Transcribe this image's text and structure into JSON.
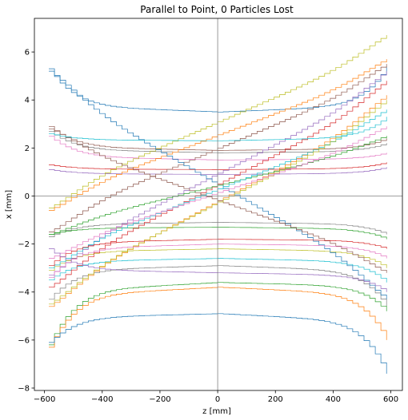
{
  "chart_data": {
    "type": "line",
    "title": "Parallel to Point, 0 Particles Lost",
    "xlabel": "z [mm]",
    "ylabel": "x [mm]",
    "xlim": [
      -635,
      640
    ],
    "ylim": [
      -8.1,
      7.4
    ],
    "xticks": [
      -600,
      -400,
      -200,
      0,
      200,
      400,
      600
    ],
    "yticks": [
      -8,
      -6,
      -4,
      -2,
      0,
      2,
      4,
      6
    ],
    "xtick_labels": [
      "−600",
      "−400",
      "−200",
      "0",
      "200",
      "400",
      "600"
    ],
    "ytick_labels": [
      "−8",
      "−6",
      "−4",
      "−2",
      "0",
      "2",
      "4",
      "6"
    ],
    "reference_lines": {
      "x": 0,
      "y": 0
    },
    "grid": false,
    "legend": "none",
    "z_range": [
      -585,
      585
    ],
    "series": [
      {
        "x0": 5.3,
        "x_mid": 3.5,
        "x_end": 5.4,
        "color": "#1f77b4"
      },
      {
        "x0": 2.9,
        "x_mid": 1.9,
        "x_end": 2.4,
        "color": "#8c564b"
      },
      {
        "x0": 2.7,
        "x_mid": 1.8,
        "x_end": 2.2,
        "color": "#7f7f7f"
      },
      {
        "x0": 2.5,
        "x_mid": 1.5,
        "x_end": 1.8,
        "color": "#e377c2"
      },
      {
        "x0": 1.3,
        "x_mid": 1.1,
        "x_end": 1.4,
        "color": "#d62728"
      },
      {
        "x0": 1.1,
        "x_mid": 0.9,
        "x_end": 1.2,
        "color": "#9467bd"
      },
      {
        "x0": -0.5,
        "x_mid": 4.4,
        "x_end": 6.7,
        "color": "#bcbd22"
      },
      {
        "x0": -0.6,
        "x_mid": 3.8,
        "x_end": 5.7,
        "color": "#ff7f0e"
      },
      {
        "x0": -1.7,
        "x_mid": -1.1,
        "x_end": -1.6,
        "color": "#7f7f7f"
      },
      {
        "x0": -1.6,
        "x_mid": -1.3,
        "x_end": -1.8,
        "color": "#2ca02c"
      },
      {
        "x0": -1.5,
        "x_mid": 3.1,
        "x_end": 5.5,
        "color": "#8c564b"
      },
      {
        "x0": -3.1,
        "x_mid": -2.2,
        "x_end": -3.0,
        "color": "#bcbd22"
      },
      {
        "x0": -3.3,
        "x_mid": 2.9,
        "x_end": 5.2,
        "color": "#9467bd"
      },
      {
        "x0": -3.5,
        "x_mid": -2.6,
        "x_end": -3.6,
        "color": "#17becf"
      },
      {
        "x0": -3.8,
        "x_mid": 2.6,
        "x_end": 4.8,
        "color": "#d62728"
      },
      {
        "x0": -4.3,
        "x_mid": -2.9,
        "x_end": -4.6,
        "color": "#7f7f7f"
      },
      {
        "x0": -4.6,
        "x_mid": 2.0,
        "x_end": 4.2,
        "color": "#ff7f0e"
      },
      {
        "x0": -6.2,
        "x_mid": -3.6,
        "x_end": -4.8,
        "color": "#2ca02c"
      },
      {
        "x0": -6.3,
        "x_mid": -3.8,
        "x_end": -6.0,
        "color": "#ff7f0e"
      },
      {
        "x0": -6.1,
        "x_mid": -4.9,
        "x_end": -7.4,
        "color": "#1f77b4"
      },
      {
        "x0": 5.2,
        "x_mid": -0.1,
        "x_end": -4.3,
        "color": "#1f77b4"
      },
      {
        "x0": 2.8,
        "x_mid": -0.2,
        "x_end": -3.2,
        "color": "#8c564b"
      },
      {
        "x0": -1.6,
        "x_mid": 0.1,
        "x_end": 2.5,
        "color": "#2ca02c"
      },
      {
        "x0": -3.0,
        "x_mid": -0.4,
        "x_end": 3.6,
        "color": "#17becf"
      },
      {
        "x0": -4.5,
        "x_mid": -0.5,
        "x_end": 4.0,
        "color": "#bcbd22"
      },
      {
        "x0": -3.4,
        "x_mid": -2.0,
        "x_end": -2.6,
        "color": "#e377c2"
      },
      {
        "x0": -2.9,
        "x_mid": -1.8,
        "x_end": -2.2,
        "color": "#d62728"
      },
      {
        "x0": 2.6,
        "x_mid": 2.3,
        "x_end": 3.3,
        "color": "#17becf"
      },
      {
        "x0": -2.6,
        "x_mid": 1.6,
        "x_end": 2.9,
        "color": "#e377c2"
      },
      {
        "x0": -2.2,
        "x_mid": -3.2,
        "x_end": -4.0,
        "color": "#9467bd"
      }
    ]
  }
}
